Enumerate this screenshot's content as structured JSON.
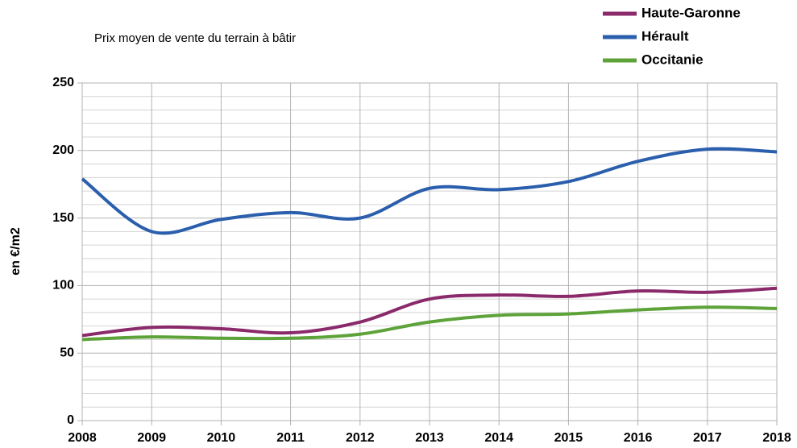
{
  "chart_data": {
    "type": "line",
    "title": "Prix moyen de vente du terrain à bâtir",
    "y_label": "en €/m2",
    "x": [
      2008,
      2009,
      2010,
      2011,
      2012,
      2013,
      2014,
      2015,
      2016,
      2017,
      2018
    ],
    "series": [
      {
        "name": "Haute-Garonne",
        "color": "#8b2a6b",
        "values": [
          63,
          69,
          68,
          65,
          73,
          90,
          93,
          92,
          96,
          95,
          98
        ]
      },
      {
        "name": "Hérault",
        "color": "#2b5fad",
        "values": [
          179,
          140,
          149,
          154,
          150,
          172,
          171,
          177,
          192,
          201,
          199
        ]
      },
      {
        "name": "Occitanie",
        "color": "#5ea33a",
        "values": [
          60,
          62,
          61,
          61,
          64,
          73,
          78,
          79,
          82,
          84,
          83
        ]
      }
    ],
    "xlim": [
      2008,
      2018
    ],
    "xticks": [
      2008,
      2009,
      2010,
      2011,
      2012,
      2013,
      2014,
      2015,
      2016,
      2017,
      2018
    ],
    "ylim": [
      0,
      250
    ],
    "yticks": [
      0,
      50,
      100,
      150,
      200,
      250
    ],
    "y_minor_ticks": [
      10,
      20,
      30,
      40,
      60,
      70,
      80,
      90,
      110,
      120,
      130,
      140,
      160,
      170,
      180,
      190,
      210,
      220,
      230,
      240
    ],
    "grid": true,
    "smooth": true,
    "legend": "top-right"
  }
}
